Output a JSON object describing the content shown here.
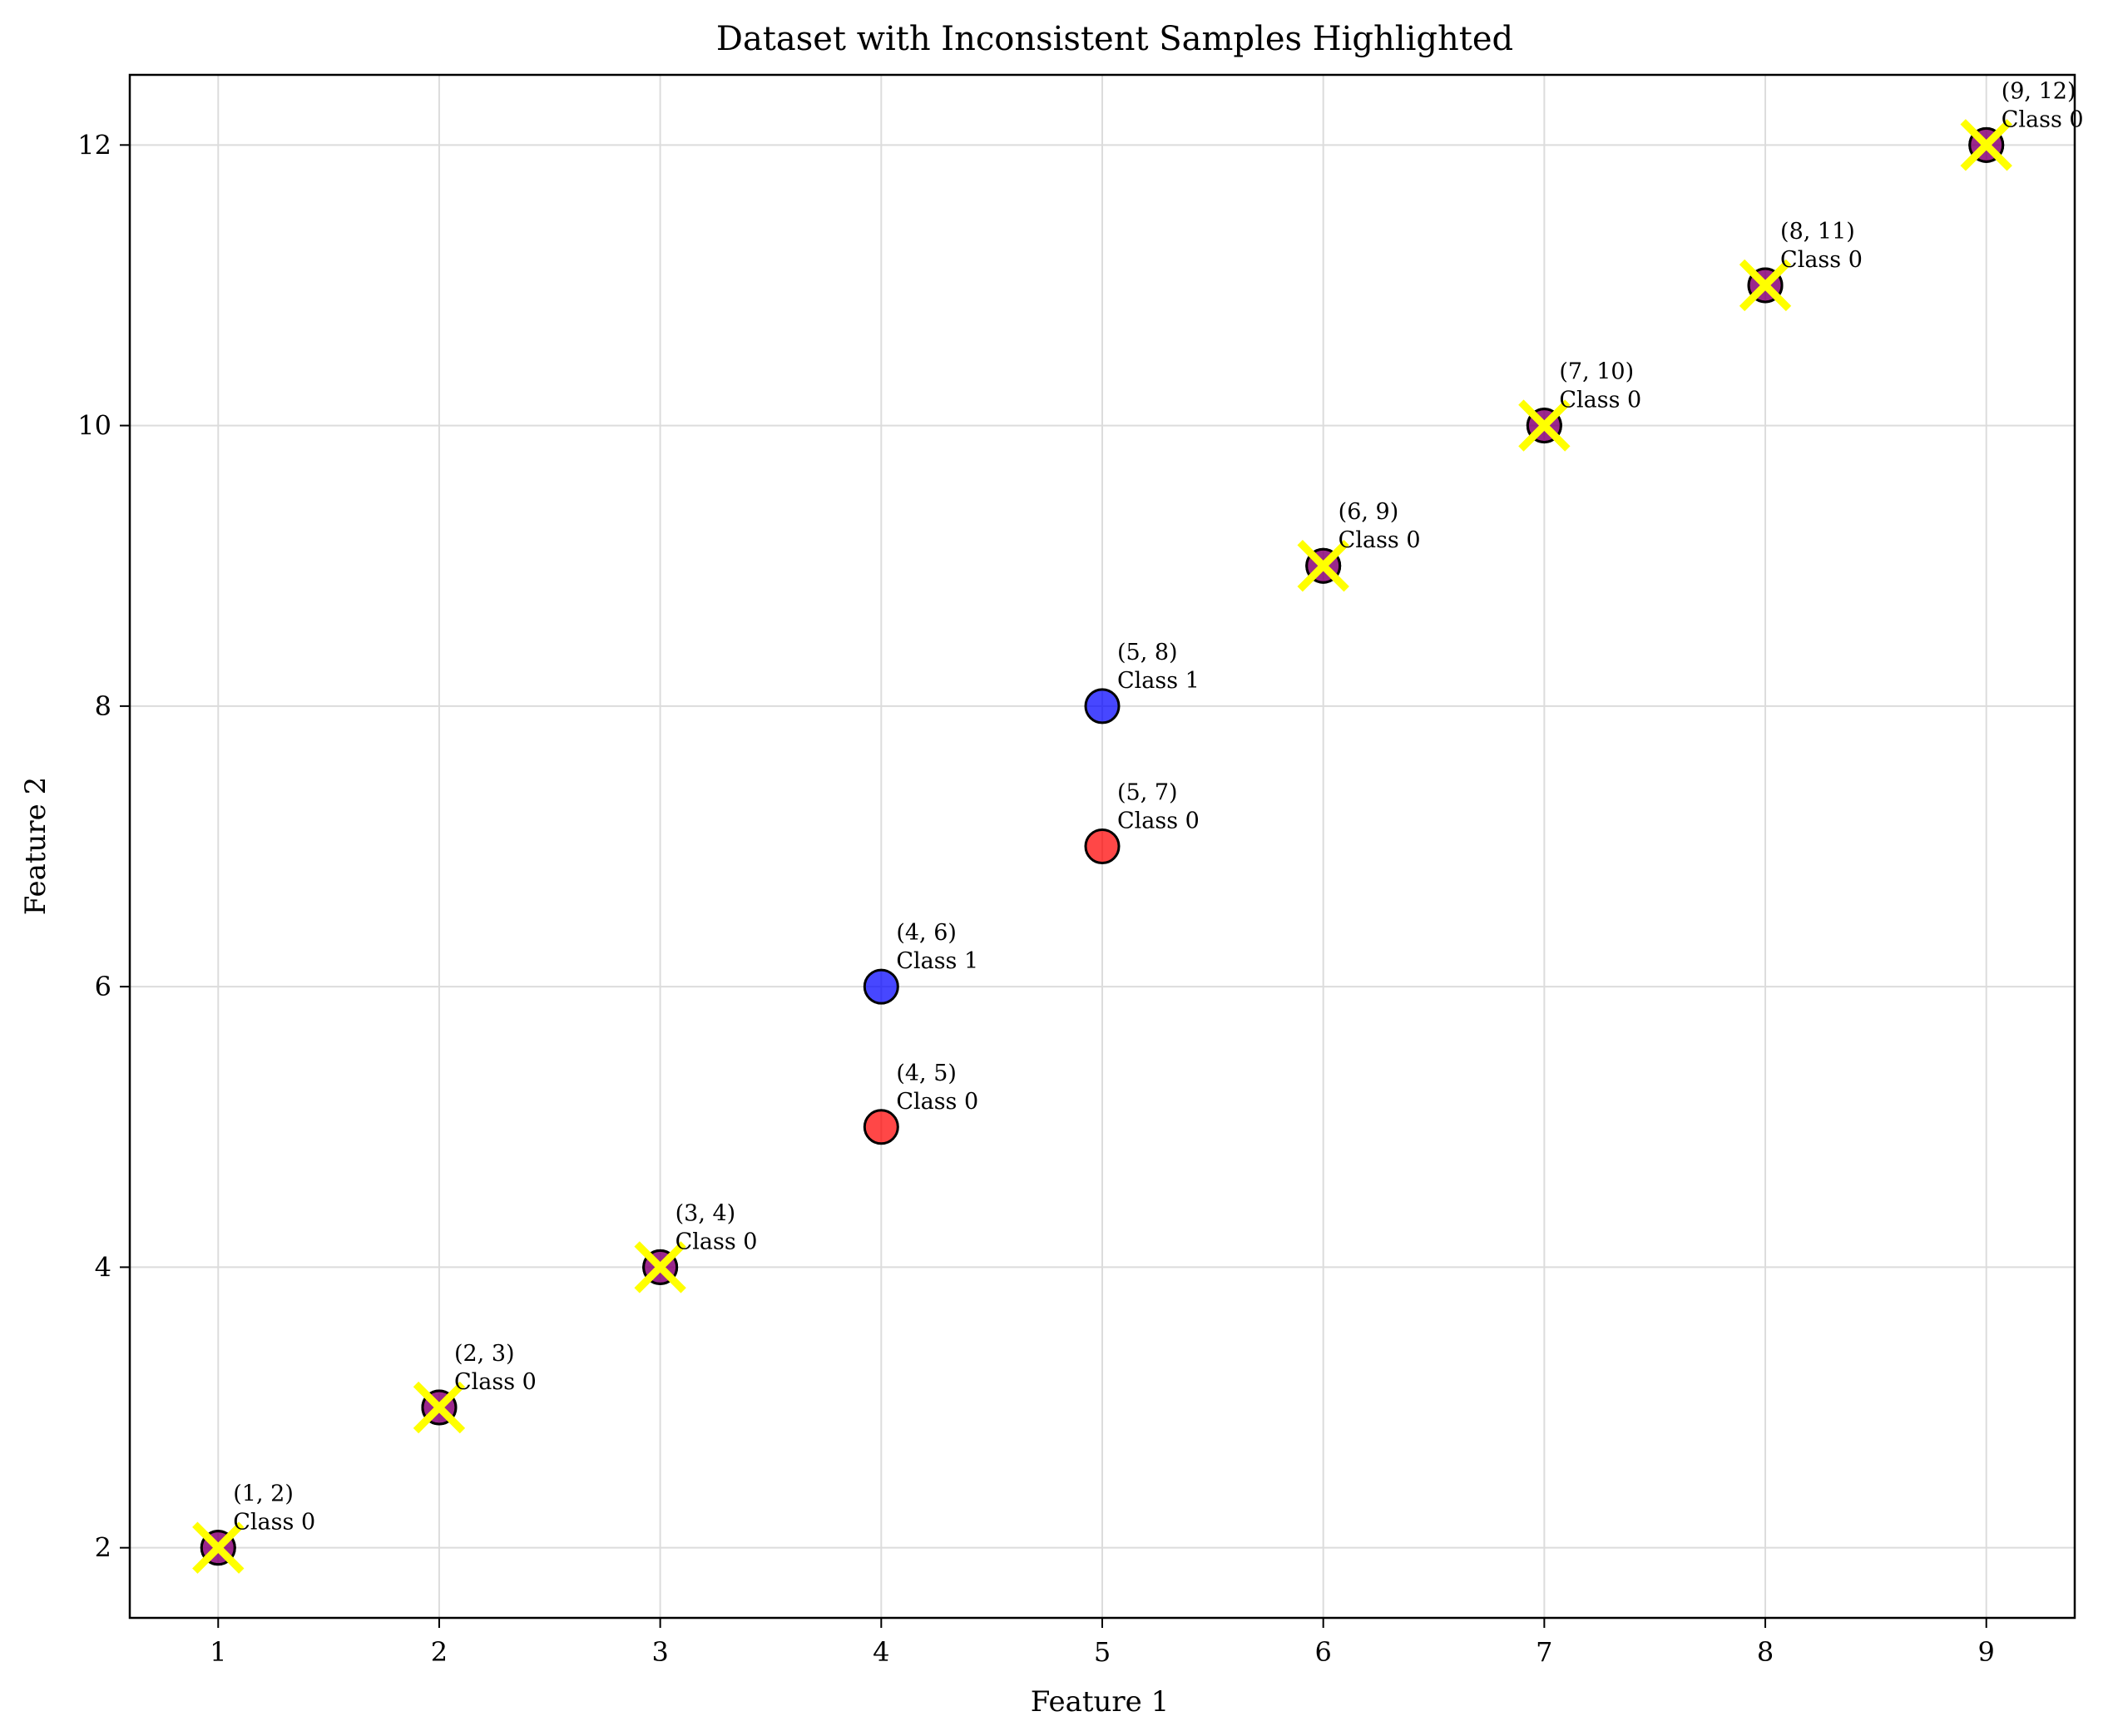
{
  "chart_data": {
    "type": "scatter",
    "title": "Dataset with Inconsistent Samples Highlighted",
    "xlabel": "Feature 1",
    "ylabel": "Feature 2",
    "xlim": [
      0.6,
      9.4
    ],
    "ylim": [
      1.5,
      12.5
    ],
    "xticks": [
      1,
      2,
      3,
      4,
      5,
      6,
      7,
      8,
      9
    ],
    "yticks": [
      2,
      4,
      6,
      8,
      10,
      12
    ],
    "grid": true,
    "colors": {
      "class0": "#ff0000",
      "class1": "#0000ff",
      "highlight": "#ffff00",
      "edge": "#000000"
    },
    "points": [
      {
        "x": 1,
        "y": 2,
        "label": "(1, 2)",
        "class_text": "Class 0",
        "class": 1,
        "overlay_class": 0,
        "inconsistent": true
      },
      {
        "x": 2,
        "y": 3,
        "label": "(2, 3)",
        "class_text": "Class 0",
        "class": 1,
        "overlay_class": 0,
        "inconsistent": true
      },
      {
        "x": 3,
        "y": 4,
        "label": "(3, 4)",
        "class_text": "Class 0",
        "class": 1,
        "overlay_class": 0,
        "inconsistent": true
      },
      {
        "x": 4,
        "y": 5,
        "label": "(4, 5)",
        "class_text": "Class 0",
        "class": 0,
        "inconsistent": false
      },
      {
        "x": 4,
        "y": 6,
        "label": "(4, 6)",
        "class_text": "Class 1",
        "class": 1,
        "inconsistent": false
      },
      {
        "x": 5,
        "y": 7,
        "label": "(5, 7)",
        "class_text": "Class 0",
        "class": 0,
        "inconsistent": false
      },
      {
        "x": 5,
        "y": 8,
        "label": "(5, 8)",
        "class_text": "Class 1",
        "class": 1,
        "inconsistent": false
      },
      {
        "x": 6,
        "y": 9,
        "label": "(6, 9)",
        "class_text": "Class 0",
        "class": 1,
        "overlay_class": 0,
        "inconsistent": true
      },
      {
        "x": 7,
        "y": 10,
        "label": "(7, 10)",
        "class_text": "Class 0",
        "class": 1,
        "overlay_class": 0,
        "inconsistent": true
      },
      {
        "x": 8,
        "y": 11,
        "label": "(8, 11)",
        "class_text": "Class 0",
        "class": 1,
        "overlay_class": 0,
        "inconsistent": true
      },
      {
        "x": 9,
        "y": 12,
        "label": "(9, 12)",
        "class_text": "Class 0",
        "class": 1,
        "overlay_class": 0,
        "inconsistent": true
      }
    ]
  }
}
